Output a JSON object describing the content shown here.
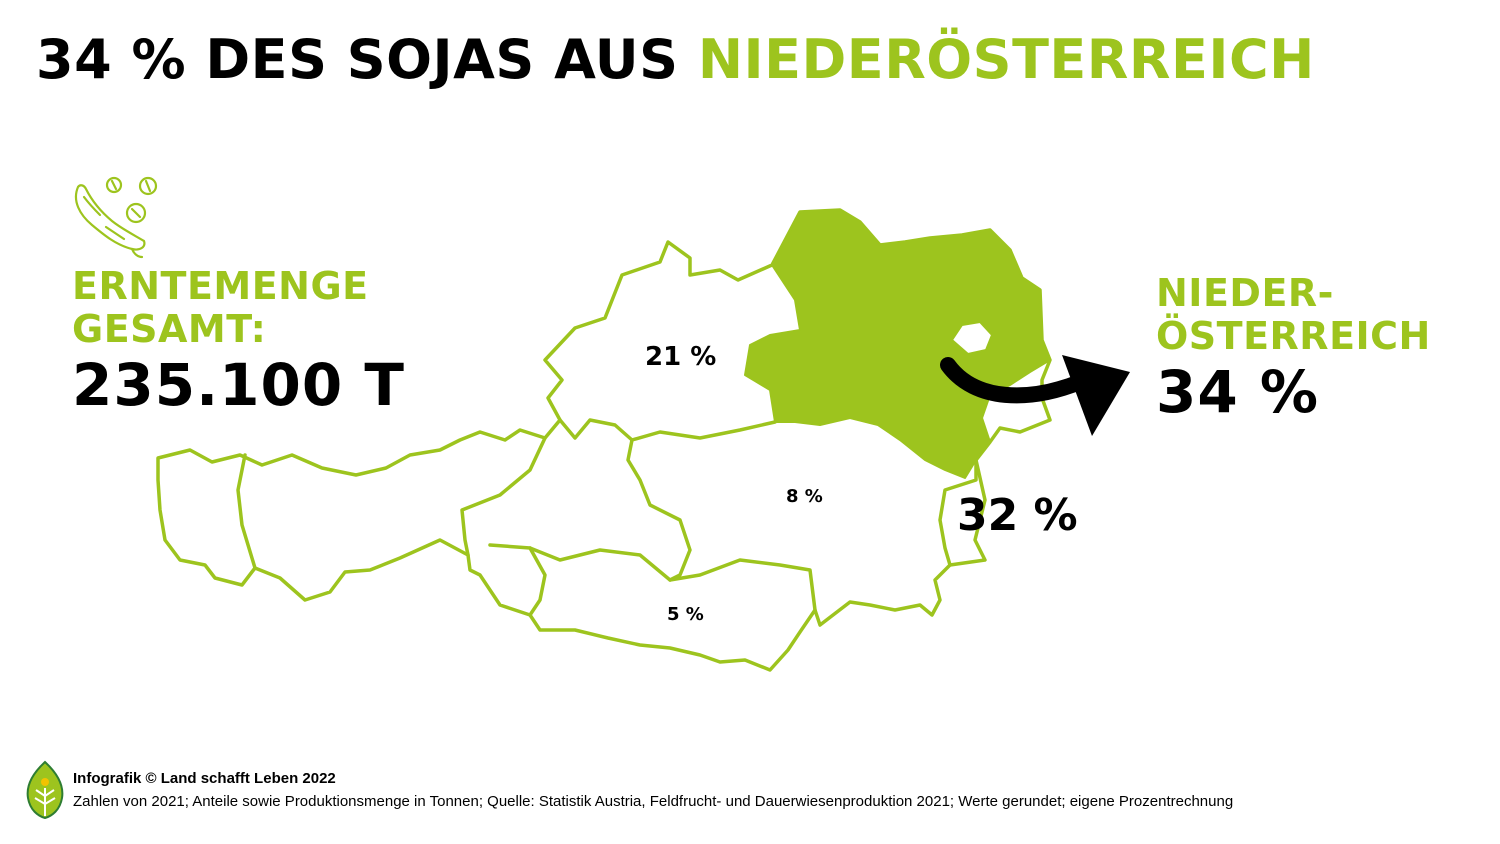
{
  "headline": {
    "part1": "34 % DES SOJAS AUS ",
    "part2": "NIEDERÖSTERREICH"
  },
  "harvest": {
    "label_line1": "ERNTEMENGE",
    "label_line2": "GESAMT:",
    "value": "235.100 T"
  },
  "highlight": {
    "label_line1": "NIEDER-",
    "label_line2": "ÖSTERREICH",
    "value": "34 %"
  },
  "regions": [
    {
      "name": "Niederösterreich",
      "share": "34 %",
      "highlighted": true
    },
    {
      "name": "Oberösterreich",
      "share": "21 %"
    },
    {
      "name": "Steiermark",
      "share": "8 %"
    },
    {
      "name": "Kärnten",
      "share": "5 %"
    },
    {
      "name": "Burgenland",
      "share": "32 %"
    }
  ],
  "footer": {
    "credit": "Infografik © Land schafft Leben 2022",
    "note": "Zahlen von 2021; Anteile sowie Produktionsmenge in Tonnen; Quelle: Statistik Austria, Feldfrucht- und Dauerwiesenproduktion 2021; Werte gerundet; eigene Prozentrechnung"
  },
  "colors": {
    "accent": "#9dc41e",
    "text": "#000000",
    "background": "#ffffff"
  },
  "icons": [
    "soybean-icon",
    "leaf-logo-icon",
    "arrow-icon"
  ]
}
